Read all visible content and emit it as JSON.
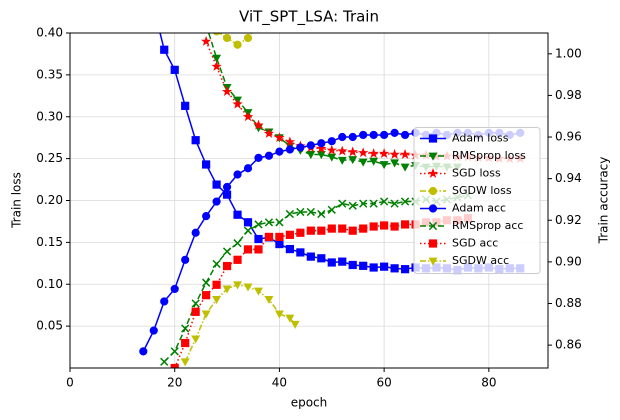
{
  "chart_data": {
    "type": "line",
    "title": "ViT_SPT_LSA: Train",
    "xlabel": "epoch",
    "ylabel": "Train loss",
    "y2label": "Train accuracy",
    "xlim": [
      0,
      91.3
    ],
    "xticks": [
      0,
      20,
      40,
      60,
      80
    ],
    "ylim": [
      0,
      0.4
    ],
    "yticks": [
      0.05,
      {
        "value": 0.1,
        "label": "0.10"
      },
      0.15,
      {
        "value": 0.2,
        "label": "0.20"
      },
      0.25,
      {
        "value": 0.3,
        "label": "0.30"
      },
      0.35,
      {
        "value": 0.4,
        "label": "0.40"
      }
    ],
    "y2lim": [
      0.849,
      1.01
    ],
    "y2ticks": [
      0.86,
      0.88,
      {
        "value": 0.9,
        "label": "0.90"
      },
      0.92,
      0.94,
      0.96,
      0.98,
      {
        "value": 1.0,
        "label": "1.00"
      }
    ],
    "grid": true,
    "legend": "center right",
    "series": [
      {
        "name": "Adam loss",
        "color": "#0000ff",
        "marker": "square",
        "linestyle": "solid",
        "x": [
          16,
          18,
          20,
          22,
          24,
          26,
          28,
          30,
          32,
          34,
          36,
          38,
          40,
          42,
          44,
          46,
          48,
          50,
          52,
          54,
          56,
          58,
          60,
          62,
          64,
          66,
          68,
          70,
          72,
          74,
          76,
          78,
          80,
          82,
          84,
          86
        ],
        "values": [
          0.43,
          0.38,
          0.356,
          0.313,
          0.272,
          0.243,
          0.219,
          0.207,
          0.183,
          0.174,
          0.154,
          0.156,
          0.148,
          0.142,
          0.138,
          0.133,
          0.131,
          0.126,
          0.127,
          0.123,
          0.122,
          0.12,
          0.121,
          0.119,
          0.118,
          0.12,
          0.119,
          0.12,
          0.119,
          0.117,
          0.12,
          0.119,
          0.12,
          0.118,
          0.119,
          0.119
        ]
      },
      {
        "name": "RMSprop loss",
        "color": "#008000",
        "marker": "triangle-down",
        "linestyle": "dashed",
        "x": [
          26,
          28,
          30,
          32,
          34,
          36,
          38,
          40,
          42,
          44,
          46,
          48,
          50,
          52,
          54,
          56,
          58,
          60,
          62,
          64,
          66,
          68,
          70,
          72,
          74
        ],
        "values": [
          0.41,
          0.37,
          0.335,
          0.32,
          0.305,
          0.287,
          0.282,
          0.275,
          0.265,
          0.26,
          0.255,
          0.255,
          0.252,
          0.248,
          0.249,
          0.246,
          0.247,
          0.243,
          0.245,
          0.24,
          0.242,
          0.24,
          0.241,
          0.24,
          0.24
        ]
      },
      {
        "name": "SGD loss",
        "color": "#ff0000",
        "marker": "star",
        "linestyle": "dotted",
        "x": [
          26,
          28,
          30,
          32,
          34,
          36,
          38,
          40,
          42,
          44,
          46,
          48,
          50,
          52,
          54,
          56,
          58,
          60,
          62,
          64,
          66,
          68,
          70,
          72,
          74,
          76,
          78,
          80,
          82,
          84,
          86
        ],
        "values": [
          0.39,
          0.36,
          0.33,
          0.315,
          0.3,
          0.29,
          0.28,
          0.275,
          0.27,
          0.265,
          0.263,
          0.262,
          0.26,
          0.259,
          0.258,
          0.257,
          0.256,
          0.256,
          0.255,
          0.255,
          0.254,
          0.254,
          0.253,
          0.253,
          0.252,
          0.252,
          0.251,
          0.251,
          0.25,
          0.25,
          0.25
        ]
      },
      {
        "name": "SGDW loss",
        "color": "#bfbf00",
        "marker": "circle",
        "linestyle": "dashdot",
        "x": [
          28,
          30,
          32,
          34,
          36
        ],
        "values": [
          0.402,
          0.394,
          0.386,
          0.394,
          0.41
        ]
      },
      {
        "name": "Adam acc",
        "color": "#0000ff",
        "marker": "circle",
        "linestyle": "solid",
        "axis": "y2",
        "x": [
          14,
          16,
          18,
          20,
          22,
          24,
          26,
          28,
          30,
          32,
          34,
          36,
          38,
          40,
          42,
          44,
          46,
          48,
          50,
          52,
          54,
          56,
          58,
          60,
          62,
          64,
          66,
          68,
          70,
          72,
          74,
          76,
          78,
          80,
          82,
          84,
          86
        ],
        "values": [
          0.857,
          0.867,
          0.881,
          0.887,
          0.901,
          0.914,
          0.922,
          0.929,
          0.936,
          0.942,
          0.945,
          0.95,
          0.951,
          0.953,
          0.954,
          0.955,
          0.956,
          0.957,
          0.958,
          0.96,
          0.96,
          0.961,
          0.961,
          0.961,
          0.962,
          0.961,
          0.962,
          0.961,
          0.962,
          0.961,
          0.962,
          0.962,
          0.961,
          0.962,
          0.962,
          0.961,
          0.962
        ]
      },
      {
        "name": "RMSprop acc",
        "color": "#008000",
        "marker": "x",
        "linestyle": "dashed",
        "axis": "y2",
        "x": [
          18,
          20,
          22,
          24,
          26,
          28,
          30,
          32,
          34,
          36,
          38,
          40,
          42,
          44,
          46,
          48,
          50,
          52,
          54,
          56,
          58,
          60,
          62,
          64,
          66,
          68,
          70,
          72,
          74,
          76
        ],
        "values": [
          0.852,
          0.857,
          0.868,
          0.88,
          0.89,
          0.899,
          0.905,
          0.909,
          0.915,
          0.918,
          0.919,
          0.919,
          0.923,
          0.924,
          0.924,
          0.923,
          0.925,
          0.928,
          0.927,
          0.928,
          0.928,
          0.929,
          0.928,
          0.929,
          0.929,
          0.93,
          0.929,
          0.93,
          0.931,
          0.932
        ]
      },
      {
        "name": "SGD acc",
        "color": "#ff0000",
        "marker": "square",
        "linestyle": "dotted",
        "axis": "y2",
        "x": [
          20,
          22,
          24,
          26,
          28,
          30,
          32,
          34,
          36,
          38,
          40,
          42,
          44,
          46,
          48,
          50,
          52,
          54,
          56,
          58,
          60,
          62,
          64,
          66,
          68,
          70,
          72,
          74,
          76
        ],
        "values": [
          0.849,
          0.861,
          0.876,
          0.884,
          0.889,
          0.898,
          0.901,
          0.906,
          0.906,
          0.912,
          0.912,
          0.913,
          0.914,
          0.915,
          0.915,
          0.916,
          0.916,
          0.915,
          0.916,
          0.917,
          0.9175,
          0.917,
          0.918,
          0.918,
          0.919,
          0.919,
          0.92,
          0.92,
          0.921
        ]
      },
      {
        "name": "SGDW acc",
        "color": "#bfbf00",
        "marker": "triangle-down",
        "linestyle": "dashdot",
        "axis": "y2",
        "x": [
          22,
          24,
          26,
          28,
          30,
          32,
          34,
          36,
          38,
          40,
          42,
          43
        ],
        "values": [
          0.852,
          0.863,
          0.875,
          0.882,
          0.887,
          0.889,
          0.888,
          0.886,
          0.882,
          0.875,
          0.873,
          0.87
        ]
      }
    ]
  }
}
